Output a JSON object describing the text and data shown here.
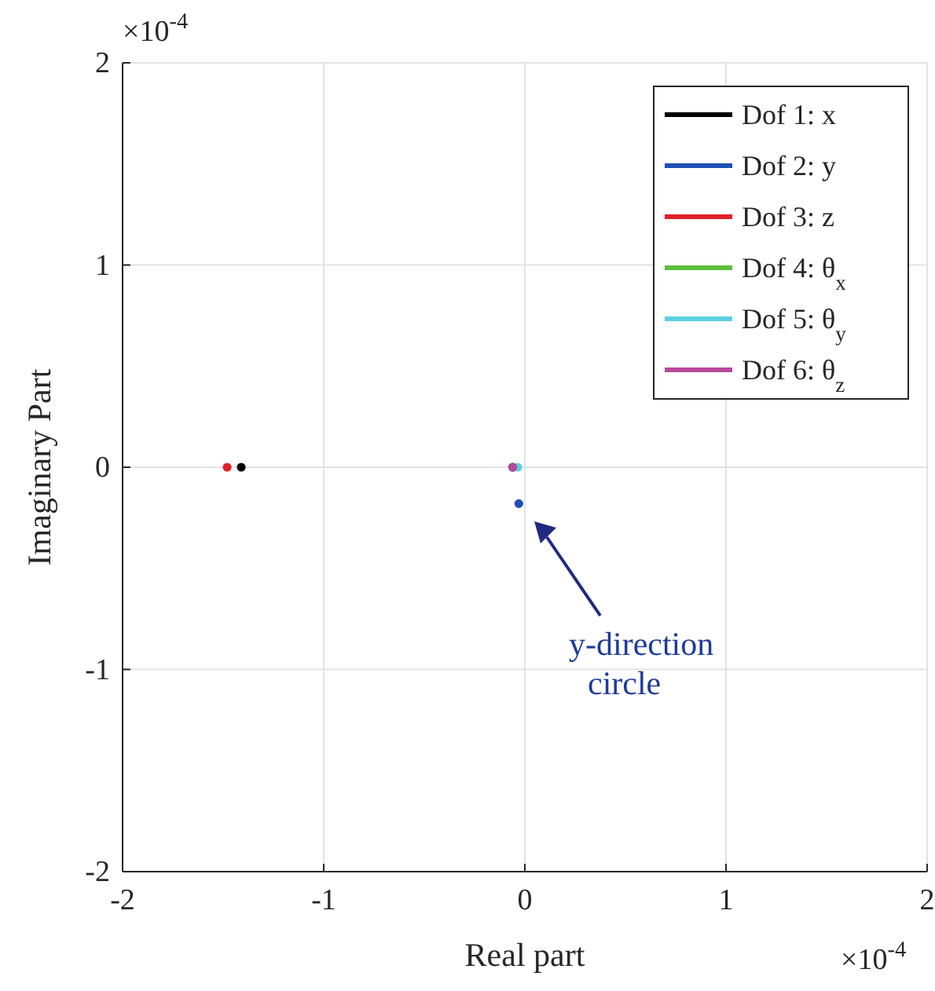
{
  "chart_data": {
    "type": "scatter",
    "xlabel": "Real part",
    "ylabel": "Imaginary Part",
    "xlim": [
      -2,
      2
    ],
    "ylim": [
      -2,
      2
    ],
    "xticks": [
      -2,
      -1,
      0,
      1,
      2
    ],
    "yticks": [
      -2,
      -1,
      0,
      1,
      2
    ],
    "grid": true,
    "legend": "top right",
    "marker": "circle",
    "annotations": [
      "×10$^{-4}$",
      "×10$^{-4}$",
      "y-direction circle"
    ],
    "series": [
      {
        "name": "Dof 1: x",
        "color": "#000000",
        "x": [
          -1.41,
          -0.06
        ],
        "values": [
          0,
          0
        ]
      },
      {
        "name": "Dof 2: y",
        "color": "#1f4fb4",
        "x": [
          -0.03
        ],
        "values": [
          -0.18
        ]
      },
      {
        "name": "Dof 3: z",
        "color": "#e0202a",
        "x": [
          -1.48
        ],
        "values": [
          0
        ]
      },
      {
        "name": "Dof 4: θ$_{x}$",
        "color": "#5cbf3c"
      },
      {
        "name": "Dof 5: θ$_{y}$",
        "color": "#5cd0e0",
        "x": [
          -0.035
        ],
        "values": [
          0
        ]
      },
      {
        "name": "Dof 6: θ$_{z}$",
        "color": "#b8489c",
        "x": [
          -0.06
        ],
        "values": [
          0
        ]
      }
    ]
  }
}
